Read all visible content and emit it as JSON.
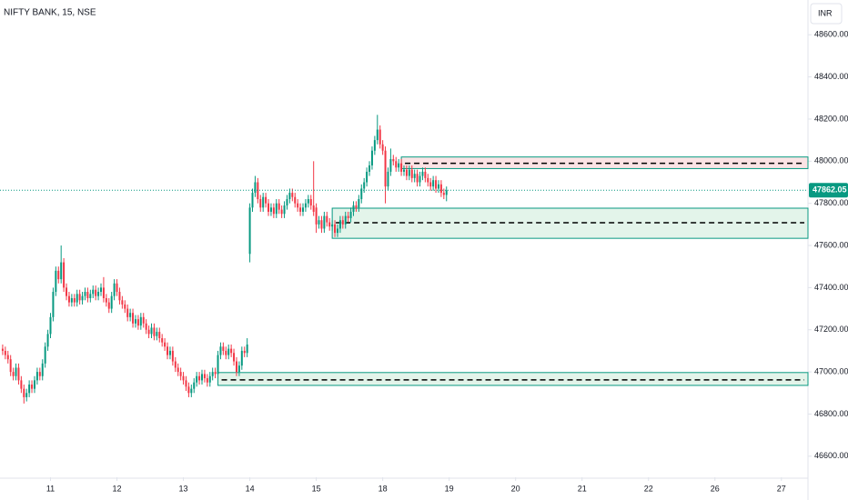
{
  "chart_data": {
    "type": "candlestick",
    "title": "NIFTY BANK, 15, NSE",
    "currency": "INR",
    "up_color": "#089981",
    "down_color": "#f23645",
    "xlim": [
      -1,
      303
    ],
    "ylim": [
      46500,
      48765
    ],
    "xticks": [
      {
        "value": 18,
        "label": "11"
      },
      {
        "value": 43,
        "label": "12"
      },
      {
        "value": 68,
        "label": "13"
      },
      {
        "value": 93,
        "label": "14"
      },
      {
        "value": 118,
        "label": "15"
      },
      {
        "value": 143,
        "label": "18"
      },
      {
        "value": 168,
        "label": "19"
      },
      {
        "value": 193,
        "label": "20"
      },
      {
        "value": 218,
        "label": "21"
      },
      {
        "value": 243,
        "label": "22"
      },
      {
        "value": 268,
        "label": "26"
      },
      {
        "value": 293,
        "label": "27"
      }
    ],
    "yticks": [
      {
        "value": 46600,
        "label": "46600.00"
      },
      {
        "value": 46800,
        "label": "46800.00"
      },
      {
        "value": 47000,
        "label": "47000.00"
      },
      {
        "value": 47200,
        "label": "47200.00"
      },
      {
        "value": 47400,
        "label": "47400.00"
      },
      {
        "value": 47600,
        "label": "47600.00"
      },
      {
        "value": 47800,
        "label": "47800.00"
      },
      {
        "value": 48000,
        "label": "48000.00"
      },
      {
        "value": 48200,
        "label": "48200.00"
      },
      {
        "value": 48400,
        "label": "48400.00"
      },
      {
        "value": 48600,
        "label": "48600.00"
      }
    ],
    "zones": [
      {
        "start": 150,
        "top": 48020,
        "bottom": 47965,
        "mid": 47990,
        "fill": "#fbe3e5",
        "border": "#089981"
      },
      {
        "start": 124,
        "top": 47777,
        "bottom": 47634,
        "mid": 47708,
        "fill": "#e3f4ea",
        "border": "#089981"
      },
      {
        "start": 81,
        "top": 46997,
        "bottom": 46936,
        "mid": 46962,
        "fill": "#e3f4ea",
        "border": "#089981"
      }
    ],
    "ohlc": [
      [
        47110,
        47130,
        47080,
        47100
      ],
      [
        47100,
        47120,
        47060,
        47080
      ],
      [
        47080,
        47100,
        47040,
        47060
      ],
      [
        47060,
        47080,
        46980,
        47000
      ],
      [
        47000,
        47020,
        46960,
        46980
      ],
      [
        46980,
        47040,
        46960,
        47020
      ],
      [
        47020,
        47040,
        46940,
        46960
      ],
      [
        46960,
        46980,
        46900,
        46920
      ],
      [
        46920,
        46940,
        46850,
        46880
      ],
      [
        46880,
        46920,
        46860,
        46900
      ],
      [
        46900,
        46960,
        46880,
        46940
      ],
      [
        46940,
        46960,
        46900,
        46920
      ],
      [
        46920,
        46980,
        46900,
        46960
      ],
      [
        46960,
        47020,
        46940,
        47000
      ],
      [
        47000,
        47020,
        46960,
        46980
      ],
      [
        46980,
        47060,
        46960,
        47040
      ],
      [
        47040,
        47140,
        47020,
        47120
      ],
      [
        47120,
        47200,
        47100,
        47180
      ],
      [
        47180,
        47280,
        47160,
        47260
      ],
      [
        47260,
        47400,
        47240,
        47380
      ],
      [
        47380,
        47500,
        47360,
        47480
      ],
      [
        47480,
        47500,
        47420,
        47440
      ],
      [
        47440,
        47600,
        47420,
        47520
      ],
      [
        47520,
        47540,
        47380,
        47400
      ],
      [
        47400,
        47420,
        47340,
        47360
      ],
      [
        47360,
        47380,
        47310,
        47330
      ],
      [
        47330,
        47370,
        47310,
        47350
      ],
      [
        47350,
        47370,
        47310,
        47330
      ],
      [
        47330,
        47390,
        47310,
        47370
      ],
      [
        47370,
        47390,
        47320,
        47340
      ],
      [
        47340,
        47380,
        47320,
        47360
      ],
      [
        47360,
        47400,
        47340,
        47380
      ],
      [
        47380,
        47400,
        47330,
        47350
      ],
      [
        47350,
        47390,
        47330,
        47370
      ],
      [
        47370,
        47410,
        47350,
        47390
      ],
      [
        47390,
        47410,
        47340,
        47360
      ],
      [
        47360,
        47400,
        47340,
        47380
      ],
      [
        47380,
        47420,
        47360,
        47400
      ],
      [
        47400,
        47450,
        47330,
        47350
      ],
      [
        47350,
        47370,
        47310,
        47330
      ],
      [
        47330,
        47350,
        47280,
        47300
      ],
      [
        47300,
        47380,
        47280,
        47360
      ],
      [
        47360,
        47440,
        47340,
        47420
      ],
      [
        47420,
        47440,
        47360,
        47380
      ],
      [
        47380,
        47400,
        47320,
        47340
      ],
      [
        47340,
        47360,
        47300,
        47320
      ],
      [
        47320,
        47340,
        47280,
        47300
      ],
      [
        47300,
        47320,
        47240,
        47260
      ],
      [
        47260,
        47300,
        47240,
        47280
      ],
      [
        47280,
        47300,
        47210,
        47230
      ],
      [
        47230,
        47270,
        47210,
        47250
      ],
      [
        47250,
        47270,
        47200,
        47220
      ],
      [
        47220,
        47280,
        47200,
        47260
      ],
      [
        47260,
        47280,
        47210,
        47230
      ],
      [
        47230,
        47250,
        47180,
        47200
      ],
      [
        47200,
        47220,
        47160,
        47180
      ],
      [
        47180,
        47230,
        47160,
        47210
      ],
      [
        47210,
        47230,
        47150,
        47170
      ],
      [
        47170,
        47210,
        47150,
        47190
      ],
      [
        47190,
        47210,
        47140,
        47160
      ],
      [
        47160,
        47180,
        47120,
        47140
      ],
      [
        47140,
        47160,
        47100,
        47120
      ],
      [
        47120,
        47140,
        47060,
        47080
      ],
      [
        47080,
        47120,
        47060,
        47100
      ],
      [
        47100,
        47120,
        47030,
        47050
      ],
      [
        47050,
        47070,
        47000,
        47020
      ],
      [
        47020,
        47040,
        46980,
        47000
      ],
      [
        47000,
        47020,
        46960,
        46980
      ],
      [
        46980,
        47000,
        46940,
        46960
      ],
      [
        46960,
        46980,
        46910,
        46930
      ],
      [
        46930,
        46950,
        46880,
        46900
      ],
      [
        46900,
        46940,
        46880,
        46920
      ],
      [
        46920,
        46970,
        46900,
        46950
      ],
      [
        46950,
        47000,
        46930,
        46980
      ],
      [
        46980,
        47000,
        46940,
        46960
      ],
      [
        46960,
        47010,
        46940,
        46990
      ],
      [
        46990,
        47010,
        46950,
        46970
      ],
      [
        46970,
        46990,
        46930,
        46950
      ],
      [
        46950,
        47000,
        46930,
        46980
      ],
      [
        46980,
        47020,
        46960,
        47000
      ],
      [
        47000,
        47020,
        46970,
        46990
      ],
      [
        46990,
        47100,
        46970,
        47080
      ],
      [
        47080,
        47140,
        47060,
        47120
      ],
      [
        47120,
        47140,
        47080,
        47100
      ],
      [
        47100,
        47120,
        47060,
        47080
      ],
      [
        47080,
        47130,
        47060,
        47110
      ],
      [
        47110,
        47130,
        47070,
        47090
      ],
      [
        47090,
        47110,
        47030,
        47050
      ],
      [
        47050,
        47070,
        46980,
        47000
      ],
      [
        47000,
        47050,
        46980,
        47030
      ],
      [
        47030,
        47120,
        47010,
        47100
      ],
      [
        47100,
        47120,
        47070,
        47090
      ],
      [
        47090,
        47160,
        47070,
        47130
      ],
      [
        47560,
        47800,
        47520,
        47780
      ],
      [
        47780,
        47870,
        47760,
        47850
      ],
      [
        47850,
        47930,
        47830,
        47900
      ],
      [
        47900,
        47920,
        47800,
        47820
      ],
      [
        47820,
        47840,
        47760,
        47780
      ],
      [
        47780,
        47850,
        47760,
        47830
      ],
      [
        47830,
        47850,
        47780,
        47800
      ],
      [
        47800,
        47820,
        47740,
        47760
      ],
      [
        47760,
        47800,
        47740,
        47780
      ],
      [
        47780,
        47800,
        47730,
        47750
      ],
      [
        47750,
        47820,
        47730,
        47800
      ],
      [
        47800,
        47820,
        47750,
        47770
      ],
      [
        47770,
        47790,
        47730,
        47750
      ],
      [
        47750,
        47810,
        47730,
        47790
      ],
      [
        47790,
        47840,
        47770,
        47820
      ],
      [
        47820,
        47870,
        47800,
        47850
      ],
      [
        47850,
        47870,
        47810,
        47830
      ],
      [
        47830,
        47850,
        47780,
        47800
      ],
      [
        47800,
        47820,
        47760,
        47780
      ],
      [
        47780,
        47800,
        47740,
        47760
      ],
      [
        47760,
        47800,
        47740,
        47780
      ],
      [
        47780,
        47820,
        47760,
        47800
      ],
      [
        47800,
        47840,
        47780,
        47820
      ],
      [
        47820,
        47840,
        47770,
        47790
      ],
      [
        47790,
        48000,
        47740,
        47760
      ],
      [
        47780,
        47800,
        47660,
        47700
      ],
      [
        47700,
        47740,
        47680,
        47720
      ],
      [
        47720,
        47740,
        47660,
        47680
      ],
      [
        47680,
        47760,
        47660,
        47740
      ],
      [
        47740,
        47760,
        47690,
        47710
      ],
      [
        47710,
        47730,
        47670,
        47690
      ],
      [
        47690,
        47720,
        47670,
        47700
      ],
      [
        47700,
        47720,
        47640,
        47660
      ],
      [
        47660,
        47700,
        47640,
        47680
      ],
      [
        47680,
        47740,
        47660,
        47720
      ],
      [
        47720,
        47740,
        47680,
        47700
      ],
      [
        47700,
        47760,
        47680,
        47740
      ],
      [
        47740,
        47760,
        47710,
        47730
      ],
      [
        47730,
        47780,
        47710,
        47760
      ],
      [
        47760,
        47810,
        47740,
        47790
      ],
      [
        47790,
        47810,
        47760,
        47780
      ],
      [
        47780,
        47840,
        47760,
        47820
      ],
      [
        47820,
        47890,
        47800,
        47870
      ],
      [
        47870,
        47920,
        47850,
        47900
      ],
      [
        47900,
        47970,
        47880,
        47950
      ],
      [
        47950,
        48000,
        47930,
        47980
      ],
      [
        47980,
        48070,
        47960,
        48050
      ],
      [
        48050,
        48120,
        48030,
        48100
      ],
      [
        48100,
        48220,
        48080,
        48150
      ],
      [
        48150,
        48170,
        48060,
        48080
      ],
      [
        48080,
        48100,
        48030,
        48050
      ],
      [
        48050,
        48070,
        47800,
        47880
      ],
      [
        47880,
        47970,
        47860,
        47950
      ],
      [
        47950,
        48060,
        47930,
        48010
      ],
      [
        48010,
        48030,
        47980,
        48000
      ],
      [
        48000,
        48020,
        47950,
        47970
      ],
      [
        47970,
        48010,
        47950,
        47990
      ],
      [
        47990,
        48010,
        47930,
        47950
      ],
      [
        47950,
        47980,
        47930,
        47960
      ],
      [
        47960,
        47980,
        47910,
        47930
      ],
      [
        47930,
        47980,
        47910,
        47960
      ],
      [
        47960,
        47980,
        47900,
        47920
      ],
      [
        47920,
        47960,
        47900,
        47940
      ],
      [
        47940,
        47960,
        47880,
        47900
      ],
      [
        47900,
        47950,
        47880,
        47930
      ],
      [
        47930,
        47970,
        47910,
        47950
      ],
      [
        47950,
        47970,
        47900,
        47920
      ],
      [
        47920,
        47940,
        47880,
        47900
      ],
      [
        47900,
        47920,
        47860,
        47880
      ],
      [
        47880,
        47930,
        47860,
        47910
      ],
      [
        47910,
        47930,
        47850,
        47870
      ],
      [
        47870,
        47910,
        47850,
        47890
      ],
      [
        47890,
        47910,
        47830,
        47850
      ],
      [
        47850,
        47870,
        47820,
        47840
      ],
      [
        47840,
        47880,
        47810,
        47862.05
      ]
    ]
  }
}
